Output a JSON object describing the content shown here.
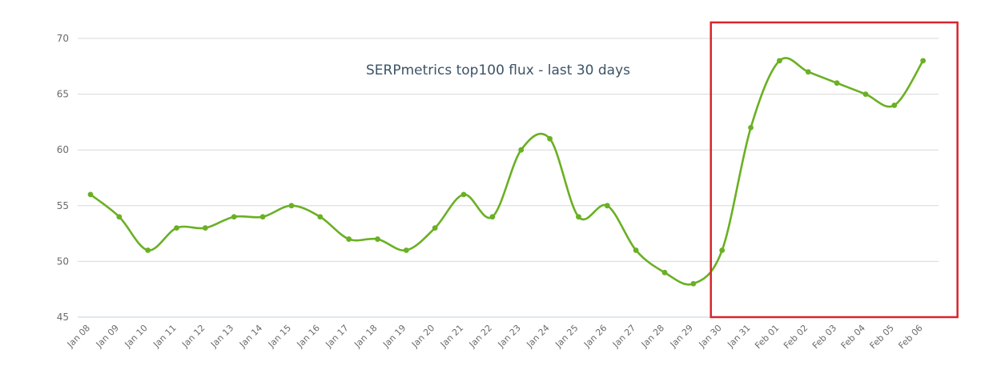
{
  "chart_data": {
    "type": "line",
    "title": "SERPmetrics top100 flux - last 30 days",
    "xlabel": "",
    "ylabel": "",
    "ylim": [
      45,
      70
    ],
    "yticks": [
      45,
      50,
      55,
      60,
      65,
      70
    ],
    "grid": true,
    "categories": [
      "Jan 08",
      "Jan 09",
      "Jan 10",
      "Jan 11",
      "Jan 12",
      "Jan 13",
      "Jan 14",
      "Jan 15",
      "Jan 16",
      "Jan 17",
      "Jan 18",
      "Jan 19",
      "Jan 20",
      "Jan 21",
      "Jan 22",
      "Jan 23",
      "Jan 24",
      "Jan 25",
      "Jan 26",
      "Jan 27",
      "Jan 28",
      "Jan 29",
      "Jan 30",
      "Jan 31",
      "Feb 01",
      "Feb 02",
      "Feb 03",
      "Feb 04",
      "Feb 05",
      "Feb 06"
    ],
    "series": [
      {
        "values": [
          56,
          54,
          51,
          53,
          53,
          54,
          54,
          55,
          54,
          52,
          52,
          51,
          53,
          56,
          54,
          60,
          61,
          54,
          55,
          51,
          49,
          48,
          51,
          62,
          68,
          67,
          66,
          65,
          64,
          68
        ],
        "color": "#6ab023"
      }
    ],
    "highlight": {
      "from": "Jan 30",
      "to": "Feb 06",
      "color": "#d9242b"
    }
  }
}
